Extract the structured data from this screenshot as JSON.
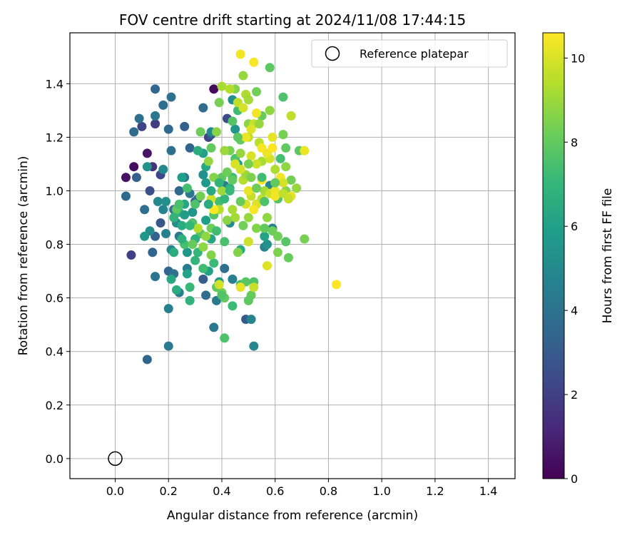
{
  "chart_data": {
    "type": "scatter",
    "title": "FOV centre drift starting at 2024/11/08 17:44:15",
    "xlabel": "Angular distance from reference (arcmin)",
    "ylabel": "Rotation from reference (arcmin)",
    "xlim": [
      -0.17,
      1.5
    ],
    "ylim": [
      -0.075,
      1.59
    ],
    "xticks": [
      "0.0",
      "0.2",
      "0.4",
      "0.6",
      "0.8",
      "1.0",
      "1.2",
      "1.4"
    ],
    "yticks": [
      "0.0",
      "0.2",
      "0.4",
      "0.6",
      "0.8",
      "1.0",
      "1.2",
      "1.4"
    ],
    "grid": true,
    "colorbar": {
      "label": "Hours from first FF file",
      "range": [
        0,
        10.6
      ],
      "ticks": [
        "0",
        "2",
        "4",
        "6",
        "8",
        "10"
      ],
      "colormap": "viridis"
    },
    "reference": {
      "label": "Reference platepar",
      "x": 0.0,
      "y": 0.0
    },
    "legend_position": "upper right",
    "points": [
      [
        0.04,
        1.05,
        0.5
      ],
      [
        0.07,
        1.09,
        0.4
      ],
      [
        0.12,
        1.14,
        0.6
      ],
      [
        0.1,
        1.24,
        2.1
      ],
      [
        0.15,
        1.25,
        1.9
      ],
      [
        0.37,
        1.38,
        0.3
      ],
      [
        0.06,
        0.76,
        2.0
      ],
      [
        0.14,
        1.09,
        1.6
      ],
      [
        0.17,
        1.06,
        2.3
      ],
      [
        0.13,
        1.0,
        2.6
      ],
      [
        0.35,
        1.2,
        2.2
      ],
      [
        0.42,
        1.27,
        2.4
      ],
      [
        0.3,
        0.96,
        2.9
      ],
      [
        0.33,
        0.67,
        3.1
      ],
      [
        0.12,
        0.37,
        3.4
      ],
      [
        0.04,
        0.98,
        3.6
      ],
      [
        0.08,
        1.05,
        3.3
      ],
      [
        0.07,
        1.22,
        3.7
      ],
      [
        0.09,
        1.27,
        3.9
      ],
      [
        0.15,
        1.38,
        3.5
      ],
      [
        0.18,
        1.32,
        3.8
      ],
      [
        0.21,
        1.35,
        4.0
      ],
      [
        0.2,
        1.23,
        3.6
      ],
      [
        0.21,
        1.15,
        3.9
      ],
      [
        0.26,
        1.24,
        3.2
      ],
      [
        0.28,
        1.16,
        3.4
      ],
      [
        0.33,
        1.31,
        3.7
      ],
      [
        0.36,
        1.21,
        3.0
      ],
      [
        0.15,
        1.28,
        4.2
      ],
      [
        0.11,
        0.93,
        3.8
      ],
      [
        0.14,
        0.77,
        3.4
      ],
      [
        0.15,
        0.68,
        4.1
      ],
      [
        0.15,
        0.83,
        3.3
      ],
      [
        0.17,
        0.88,
        2.9
      ],
      [
        0.2,
        0.7,
        3.5
      ],
      [
        0.22,
        0.69,
        4.0
      ],
      [
        0.2,
        0.42,
        4.3
      ],
      [
        0.2,
        0.56,
        4.6
      ],
      [
        0.37,
        0.49,
        4.2
      ],
      [
        0.38,
        0.59,
        4.4
      ],
      [
        0.34,
        0.61,
        3.8
      ],
      [
        0.49,
        0.52,
        3.0
      ],
      [
        0.51,
        0.52,
        4.8
      ],
      [
        0.52,
        0.42,
        4.9
      ],
      [
        0.44,
        0.67,
        4.6
      ],
      [
        0.41,
        0.71,
        3.9
      ],
      [
        0.24,
        0.62,
        4.5
      ],
      [
        0.27,
        0.71,
        4.4
      ],
      [
        0.24,
        0.83,
        4.3
      ],
      [
        0.22,
        0.93,
        3.9
      ],
      [
        0.26,
        1.05,
        4.1
      ],
      [
        0.24,
        1.0,
        3.6
      ],
      [
        0.28,
        0.99,
        4.2
      ],
      [
        0.31,
        0.97,
        3.7
      ],
      [
        0.19,
        0.84,
        4.6
      ],
      [
        0.21,
        0.78,
        4.9
      ],
      [
        0.18,
        0.93,
        4.8
      ],
      [
        0.16,
        0.96,
        5.0
      ],
      [
        0.19,
        0.96,
        5.3
      ],
      [
        0.13,
        0.85,
        5.1
      ],
      [
        0.11,
        0.83,
        5.6
      ],
      [
        0.18,
        1.08,
        5.0
      ],
      [
        0.12,
        1.09,
        5.4
      ],
      [
        0.23,
        0.88,
        5.2
      ],
      [
        0.27,
        0.77,
        5.6
      ],
      [
        0.29,
        0.92,
        5.5
      ],
      [
        0.25,
        1.05,
        5.9
      ],
      [
        0.33,
        1.06,
        5.3
      ],
      [
        0.34,
        1.03,
        5.7
      ],
      [
        0.34,
        0.89,
        5.9
      ],
      [
        0.36,
        0.82,
        6.2
      ],
      [
        0.35,
        0.7,
        6.0
      ],
      [
        0.39,
        0.66,
        5.8
      ],
      [
        0.43,
        0.88,
        5.1
      ],
      [
        0.47,
        0.78,
        6.4
      ],
      [
        0.56,
        0.79,
        4.8
      ],
      [
        0.57,
        0.8,
        5.4
      ],
      [
        0.56,
        0.83,
        6.1
      ],
      [
        0.59,
        0.86,
        4.7
      ],
      [
        0.53,
        0.95,
        4.4
      ],
      [
        0.58,
        1.02,
        4.9
      ],
      [
        0.41,
        1.02,
        4.5
      ],
      [
        0.36,
        1.22,
        5.0
      ],
      [
        0.44,
        1.34,
        5.2
      ],
      [
        0.45,
        1.23,
        5.5
      ],
      [
        0.46,
        1.1,
        6.0
      ],
      [
        0.33,
        1.14,
        6.0
      ],
      [
        0.34,
        1.09,
        6.3
      ],
      [
        0.31,
        1.15,
        6.6
      ],
      [
        0.26,
        0.95,
        6.2
      ],
      [
        0.25,
        0.87,
        6.5
      ],
      [
        0.24,
        0.92,
        6.8
      ],
      [
        0.22,
        0.77,
        6.6
      ],
      [
        0.21,
        0.67,
        6.3
      ],
      [
        0.23,
        0.63,
        6.6
      ],
      [
        0.28,
        0.59,
        6.9
      ],
      [
        0.28,
        0.64,
        7.1
      ],
      [
        0.3,
        0.74,
        6.9
      ],
      [
        0.33,
        0.71,
        7.3
      ],
      [
        0.31,
        0.77,
        7.0
      ],
      [
        0.26,
        0.8,
        7.4
      ],
      [
        0.29,
        0.88,
        7.6
      ],
      [
        0.32,
        0.84,
        7.8
      ],
      [
        0.37,
        0.73,
        7.2
      ],
      [
        0.41,
        0.81,
        7.5
      ],
      [
        0.41,
        0.45,
        7.6
      ],
      [
        0.44,
        0.57,
        7.2
      ],
      [
        0.47,
        0.65,
        7.4
      ],
      [
        0.49,
        0.66,
        7.8
      ],
      [
        0.52,
        0.66,
        7.6
      ],
      [
        0.51,
        0.61,
        8.1
      ],
      [
        0.5,
        0.59,
        7.9
      ],
      [
        0.4,
        0.62,
        8.3
      ],
      [
        0.38,
        0.64,
        8.0
      ],
      [
        0.36,
        0.76,
        8.6
      ],
      [
        0.34,
        0.83,
        8.8
      ],
      [
        0.36,
        0.86,
        8.2
      ],
      [
        0.37,
        0.91,
        7.7
      ],
      [
        0.39,
        0.96,
        7.4
      ],
      [
        0.41,
        0.97,
        7.0
      ],
      [
        0.43,
        1.01,
        6.8
      ],
      [
        0.44,
        1.05,
        7.3
      ],
      [
        0.4,
        1.05,
        7.9
      ],
      [
        0.42,
        1.07,
        8.2
      ],
      [
        0.45,
        1.12,
        7.6
      ],
      [
        0.43,
        1.15,
        8.4
      ],
      [
        0.47,
        1.19,
        8.0
      ],
      [
        0.46,
        1.3,
        7.3
      ],
      [
        0.45,
        1.38,
        8.6
      ],
      [
        0.48,
        1.43,
        8.9
      ],
      [
        0.58,
        1.46,
        7.9
      ],
      [
        0.53,
        1.37,
        8.3
      ],
      [
        0.63,
        1.35,
        7.6
      ],
      [
        0.55,
        1.28,
        8.1
      ],
      [
        0.5,
        1.25,
        8.7
      ],
      [
        0.58,
        1.3,
        8.8
      ],
      [
        0.63,
        1.21,
        8.4
      ],
      [
        0.64,
        1.16,
        8.0
      ],
      [
        0.62,
        1.12,
        7.4
      ],
      [
        0.66,
        1.04,
        8.3
      ],
      [
        0.64,
        1.0,
        8.6
      ],
      [
        0.68,
        1.01,
        8.9
      ],
      [
        0.69,
        1.15,
        7.9
      ],
      [
        0.61,
        0.97,
        7.7
      ],
      [
        0.59,
        0.85,
        8.2
      ],
      [
        0.61,
        0.77,
        8.5
      ],
      [
        0.64,
        0.81,
        7.8
      ],
      [
        0.71,
        0.82,
        8.4
      ],
      [
        0.65,
        0.75,
        8.1
      ],
      [
        0.57,
        0.9,
        8.8
      ],
      [
        0.53,
        0.86,
        8.6
      ],
      [
        0.48,
        0.87,
        8.3
      ],
      [
        0.5,
        0.9,
        8.9
      ],
      [
        0.45,
        0.9,
        9.1
      ],
      [
        0.44,
        0.93,
        9.2
      ],
      [
        0.39,
        0.93,
        9.5
      ],
      [
        0.4,
        1.0,
        9.0
      ],
      [
        0.41,
        1.15,
        9.0
      ],
      [
        0.38,
        1.22,
        8.7
      ],
      [
        0.39,
        1.33,
        8.4
      ],
      [
        0.4,
        1.39,
        9.2
      ],
      [
        0.43,
        1.38,
        9.4
      ],
      [
        0.46,
        1.33,
        9.6
      ],
      [
        0.48,
        1.31,
        9.9
      ],
      [
        0.49,
        1.36,
        9.3
      ],
      [
        0.5,
        1.34,
        9.1
      ],
      [
        0.52,
        1.25,
        9.7
      ],
      [
        0.54,
        1.25,
        8.9
      ],
      [
        0.54,
        1.18,
        9.5
      ],
      [
        0.55,
        1.11,
        9.2
      ],
      [
        0.53,
        1.1,
        9.8
      ],
      [
        0.51,
        1.13,
        10.0
      ],
      [
        0.5,
        1.2,
        9.6
      ],
      [
        0.48,
        1.04,
        9.4
      ],
      [
        0.49,
        1.06,
        9.0
      ],
      [
        0.51,
        0.98,
        9.7
      ],
      [
        0.53,
        0.95,
        10.1
      ],
      [
        0.55,
        0.97,
        9.5
      ],
      [
        0.56,
        1.0,
        9.1
      ],
      [
        0.58,
        0.99,
        9.8
      ],
      [
        0.6,
        1.0,
        10.3
      ],
      [
        0.62,
        1.05,
        10.4
      ],
      [
        0.6,
        1.08,
        9.3
      ],
      [
        0.58,
        1.12,
        9.9
      ],
      [
        0.59,
        1.2,
        10.2
      ],
      [
        0.55,
        1.16,
        10.5
      ],
      [
        0.57,
        1.14,
        10.3
      ],
      [
        0.59,
        1.16,
        10.6
      ],
      [
        0.53,
        1.29,
        10.4
      ],
      [
        0.52,
        1.48,
        10.5
      ],
      [
        0.47,
        1.51,
        10.4
      ],
      [
        0.49,
        1.2,
        10.3
      ],
      [
        0.51,
        1.23,
        10.1
      ],
      [
        0.45,
        1.1,
        10.0
      ],
      [
        0.47,
        1.08,
        9.9
      ],
      [
        0.5,
        1.0,
        10.2
      ],
      [
        0.49,
        0.95,
        10.0
      ],
      [
        0.52,
        0.93,
        10.5
      ],
      [
        0.55,
        1.04,
        10.6
      ],
      [
        0.6,
        0.98,
        10.4
      ],
      [
        0.63,
        1.03,
        10.0
      ],
      [
        0.63,
        0.99,
        9.6
      ],
      [
        0.66,
        0.98,
        10.2
      ],
      [
        0.66,
        1.28,
        9.6
      ],
      [
        0.71,
        1.15,
        10.3
      ],
      [
        0.57,
        0.72,
        10.1
      ],
      [
        0.5,
        0.81,
        9.8
      ],
      [
        0.47,
        0.64,
        10.2
      ],
      [
        0.52,
        0.64,
        9.7
      ],
      [
        0.39,
        0.65,
        9.9
      ],
      [
        0.37,
        0.93,
        10.6
      ],
      [
        0.36,
        0.97,
        9.8
      ],
      [
        0.83,
        0.65,
        10.6
      ],
      [
        0.41,
        0.6,
        8.0
      ],
      [
        0.4,
        0.61,
        7.7
      ],
      [
        0.46,
        0.77,
        8.6
      ],
      [
        0.27,
        1.01,
        7.4
      ],
      [
        0.3,
        0.82,
        6.8
      ],
      [
        0.27,
        0.69,
        6.1
      ],
      [
        0.23,
        0.93,
        7.9
      ],
      [
        0.25,
        0.82,
        6.7
      ],
      [
        0.32,
        0.98,
        8.3
      ],
      [
        0.35,
        1.11,
        8.9
      ],
      [
        0.37,
        1.05,
        8.6
      ],
      [
        0.44,
        1.04,
        8.0
      ],
      [
        0.47,
        0.96,
        8.1
      ],
      [
        0.42,
        0.89,
        8.7
      ],
      [
        0.38,
        0.85,
        7.3
      ],
      [
        0.31,
        0.86,
        9.4
      ],
      [
        0.33,
        0.79,
        8.8
      ],
      [
        0.29,
        0.8,
        8.1
      ],
      [
        0.32,
        1.22,
        8.2
      ],
      [
        0.36,
        1.16,
        8.0
      ],
      [
        0.44,
        1.26,
        7.7
      ],
      [
        0.47,
        1.14,
        8.9
      ],
      [
        0.51,
        1.05,
        8.5
      ],
      [
        0.53,
        1.01,
        8.2
      ],
      [
        0.56,
        0.96,
        7.6
      ],
      [
        0.6,
        1.03,
        8.0
      ],
      [
        0.64,
        1.09,
        8.8
      ],
      [
        0.65,
        0.97,
        9.7
      ],
      [
        0.61,
        0.83,
        8.3
      ],
      [
        0.56,
        0.86,
        8.0
      ],
      [
        0.55,
        1.05,
        7.3
      ],
      [
        0.5,
        1.1,
        8.4
      ],
      [
        0.46,
        1.2,
        7.9
      ],
      [
        0.43,
        1.0,
        7.1
      ],
      [
        0.39,
        1.03,
        6.9
      ],
      [
        0.36,
        1.0,
        6.4
      ],
      [
        0.35,
        0.95,
        6.5
      ],
      [
        0.3,
        0.95,
        7.6
      ],
      [
        0.28,
        0.87,
        7.0
      ],
      [
        0.26,
        0.91,
        5.8
      ],
      [
        0.24,
        0.95,
        7.5
      ],
      [
        0.22,
        0.9,
        6.9
      ]
    ]
  }
}
